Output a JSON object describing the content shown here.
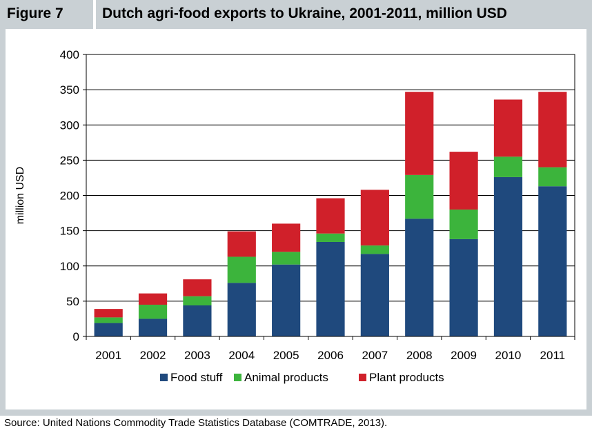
{
  "figure": {
    "number": "Figure 7",
    "title": "Dutch agri-food exports to Ukraine, 2001-2011, million USD"
  },
  "source": "Source: United Nations Commodity Trade Statistics Database (COMTRADE, 2013).",
  "colors": {
    "food": "#1f497d",
    "animal": "#3cb43c",
    "plant": "#d0202a",
    "header_bg": "#c9d0d4"
  },
  "chart_data": {
    "type": "bar",
    "stacked": true,
    "categories": [
      "2001",
      "2002",
      "2003",
      "2004",
      "2005",
      "2006",
      "2007",
      "2008",
      "2009",
      "2010",
      "2011"
    ],
    "series": [
      {
        "name": "Food stuff",
        "values": [
          19,
          25,
          44,
          76,
          102,
          134,
          117,
          167,
          138,
          226,
          213
        ]
      },
      {
        "name": "Animal products",
        "values": [
          8,
          20,
          13,
          37,
          18,
          12,
          12,
          62,
          42,
          29,
          27
        ]
      },
      {
        "name": "Plant products",
        "values": [
          12,
          16,
          24,
          36,
          40,
          50,
          79,
          118,
          82,
          81,
          107
        ]
      }
    ],
    "title": "",
    "xlabel": "",
    "ylabel": "million USD",
    "ylim": [
      0,
      400
    ],
    "yticks": [
      "0",
      "50",
      "100",
      "150",
      "200",
      "250",
      "300",
      "350",
      "400"
    ],
    "grid": true,
    "legend": "bottom"
  }
}
